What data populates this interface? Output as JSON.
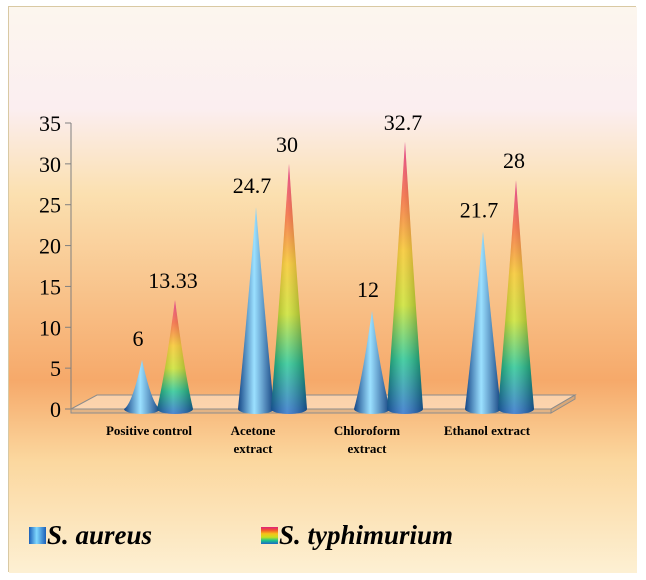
{
  "colors": {
    "background_top": "#fcf6ee",
    "background_band": "#f6a96a",
    "background_bottom": "#fdf0d3",
    "aureus_light": "#7fd8ff",
    "aureus_dark": "#1b5fb8",
    "typhimurium_stops": [
      "#e0207a",
      "#f25a2a",
      "#f6c21a",
      "#c7df1f",
      "#19c28c",
      "#1e66c6"
    ]
  },
  "chart_data": {
    "type": "bar",
    "style": "3d-cone",
    "categories": [
      "Positive control",
      "Acetone extract",
      "Chloroform extract",
      "Ethanol extract"
    ],
    "category_lines": [
      [
        "Positive control"
      ],
      [
        "Acetone",
        "extract"
      ],
      [
        "Chloroform",
        "extract"
      ],
      [
        "Ethanol extract"
      ]
    ],
    "series": [
      {
        "name": "S. aureus",
        "values": [
          6,
          24.7,
          12,
          21.7
        ],
        "labels": [
          "6",
          "24.7",
          "12",
          "21.7"
        ]
      },
      {
        "name": "S. typhimurium",
        "values": [
          13.33,
          30,
          32.7,
          28
        ],
        "labels": [
          "13.33",
          "30",
          "32.7",
          "28"
        ]
      }
    ],
    "ylim": [
      0,
      35
    ],
    "yticks": [
      0,
      5,
      10,
      15,
      20,
      25,
      30,
      35
    ],
    "title": "",
    "xlabel": "",
    "ylabel": "",
    "grid": false,
    "legend": "bottom-left"
  }
}
